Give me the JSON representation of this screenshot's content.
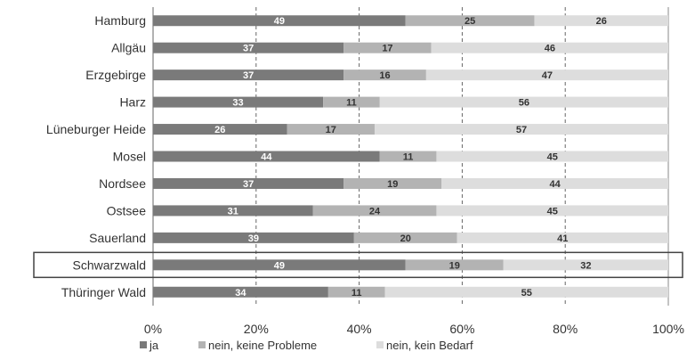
{
  "chart_data": {
    "type": "bar",
    "orientation": "horizontal",
    "stacked": "percent",
    "categories": [
      "Hamburg",
      "Allgäu",
      "Erzgebirge",
      "Harz",
      "Lüneburger Heide",
      "Mosel",
      "Nordsee",
      "Ostsee",
      "Sauerland",
      "Schwarzwald",
      "Thüringer Wald"
    ],
    "series": [
      {
        "name": "ja",
        "values": [
          49,
          37,
          37,
          33,
          26,
          44,
          37,
          31,
          39,
          49,
          34
        ],
        "color": "#7a7a7a",
        "label_color": "#ffffff"
      },
      {
        "name": "nein, keine Probleme",
        "values": [
          25,
          17,
          16,
          11,
          17,
          11,
          19,
          24,
          20,
          19,
          11
        ],
        "color": "#b3b3b3",
        "label_color": "#333333"
      },
      {
        "name": "nein, kein Bedarf",
        "values": [
          26,
          46,
          47,
          56,
          57,
          45,
          44,
          45,
          41,
          32,
          55
        ],
        "color": "#dddddd",
        "label_color": "#333333"
      }
    ],
    "x_ticks": [
      "0%",
      "20%",
      "40%",
      "60%",
      "80%",
      "100%"
    ],
    "xlim": [
      0,
      100
    ],
    "highlighted_category": "Schwarzwald",
    "grid": "vertical dashed",
    "legend_position": "bottom-left"
  }
}
